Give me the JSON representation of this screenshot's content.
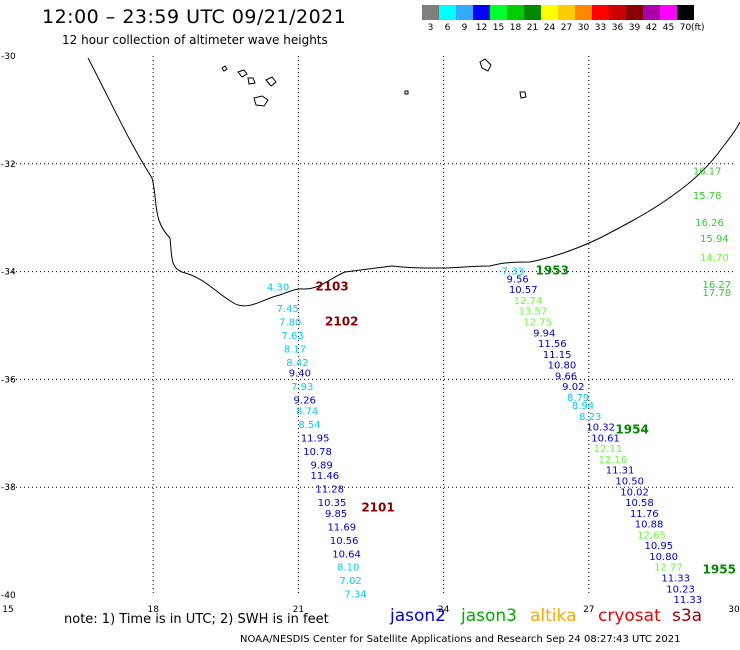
{
  "header": {
    "title": "12:00 – 23:59 UTC 09/21/2021",
    "subtitle": "12 hour collection of altimeter wave heights"
  },
  "scale": {
    "unit": "(ft)",
    "bins": [
      {
        "label": "3",
        "color": "#7f7f7f"
      },
      {
        "label": "6",
        "color": "#00ffff"
      },
      {
        "label": "9",
        "color": "#33aaff"
      },
      {
        "label": "12",
        "color": "#0000ff"
      },
      {
        "label": "15",
        "color": "#00ff33"
      },
      {
        "label": "18",
        "color": "#00cc00"
      },
      {
        "label": "21",
        "color": "#008800"
      },
      {
        "label": "24",
        "color": "#ffff00"
      },
      {
        "label": "27",
        "color": "#ffcc00"
      },
      {
        "label": "30",
        "color": "#ff8800"
      },
      {
        "label": "33",
        "color": "#ff0000"
      },
      {
        "label": "36",
        "color": "#cc0000"
      },
      {
        "label": "39",
        "color": "#880000"
      },
      {
        "label": "42",
        "color": "#aa00aa"
      },
      {
        "label": "45",
        "color": "#ff00ff"
      },
      {
        "label": "70",
        "color": "#000000"
      }
    ]
  },
  "map": {
    "lat_labels": [
      "-30",
      "-32",
      "-34",
      "-36",
      "-38",
      "-40"
    ],
    "lon_labels": [
      "15",
      "18",
      "21",
      "24",
      "27",
      "30"
    ],
    "lat_range": [
      -40,
      -30
    ],
    "lon_range": [
      15,
      30
    ],
    "passes": [
      {
        "label": "2103",
        "satellite": "cryosat",
        "lat": -34.35,
        "lon": 21.35,
        "color": "#880000"
      },
      {
        "label": "2102",
        "satellite": "cryosat",
        "lat": -35.0,
        "lon": 21.55,
        "color": "#880000"
      },
      {
        "label": "2101",
        "satellite": "cryosat",
        "lat": -38.45,
        "lon": 22.3,
        "color": "#880000"
      },
      {
        "label": "1953",
        "satellite": "jason3",
        "lat": -34.05,
        "lon": 25.9,
        "color": "#008800"
      },
      {
        "label": "1954",
        "satellite": "jason3",
        "lat": -37.0,
        "lon": 27.55,
        "color": "#008800"
      },
      {
        "label": "1955",
        "satellite": "jason3",
        "lat": -39.6,
        "lon": 29.35,
        "color": "#008800"
      }
    ],
    "readings": [
      {
        "v": "4.30",
        "lat": -34.35,
        "lon": 20.35,
        "color": "#00ccff"
      },
      {
        "v": "7.45",
        "lat": -34.75,
        "lon": 20.55,
        "color": "#00ccff"
      },
      {
        "v": "7.80",
        "lat": -35.0,
        "lon": 20.6,
        "color": "#00ccff"
      },
      {
        "v": "7.63",
        "lat": -35.25,
        "lon": 20.65,
        "color": "#00ccff"
      },
      {
        "v": "8.17",
        "lat": -35.5,
        "lon": 20.7,
        "color": "#00ccff"
      },
      {
        "v": "8.42",
        "lat": -35.75,
        "lon": 20.75,
        "color": "#00ccff"
      },
      {
        "v": "9.40",
        "lat": -35.95,
        "lon": 20.8,
        "color": "#0000cc"
      },
      {
        "v": "7.93",
        "lat": -36.2,
        "lon": 20.85,
        "color": "#00ccff"
      },
      {
        "v": "9.26",
        "lat": -36.45,
        "lon": 20.9,
        "color": "#0000cc"
      },
      {
        "v": "8.74",
        "lat": -36.65,
        "lon": 20.95,
        "color": "#00ccff"
      },
      {
        "v": "8.54",
        "lat": -36.9,
        "lon": 21.0,
        "color": "#00ccff"
      },
      {
        "v": "11.95",
        "lat": -37.15,
        "lon": 21.05,
        "color": "#0000cc"
      },
      {
        "v": "10.78",
        "lat": -37.4,
        "lon": 21.1,
        "color": "#0000cc"
      },
      {
        "v": "9.89",
        "lat": -37.65,
        "lon": 21.25,
        "color": "#0000cc"
      },
      {
        "v": "11.46",
        "lat": -37.85,
        "lon": 21.25,
        "color": "#0000cc"
      },
      {
        "v": "11.28",
        "lat": -38.1,
        "lon": 21.35,
        "color": "#0000cc"
      },
      {
        "v": "10.35",
        "lat": -38.35,
        "lon": 21.4,
        "color": "#0000cc"
      },
      {
        "v": "9.85",
        "lat": -38.55,
        "lon": 21.55,
        "color": "#0000cc"
      },
      {
        "v": "11.69",
        "lat": -38.8,
        "lon": 21.6,
        "color": "#0000cc"
      },
      {
        "v": "10.56",
        "lat": -39.05,
        "lon": 21.65,
        "color": "#0000cc"
      },
      {
        "v": "10.64",
        "lat": -39.3,
        "lon": 21.7,
        "color": "#0000cc"
      },
      {
        "v": "8.10",
        "lat": -39.55,
        "lon": 21.8,
        "color": "#00ccff"
      },
      {
        "v": "7.02",
        "lat": -39.8,
        "lon": 21.85,
        "color": "#00ccff"
      },
      {
        "v": "7.34",
        "lat": -40.05,
        "lon": 21.95,
        "color": "#00ccff"
      },
      {
        "v": "7.33",
        "lat": -34.05,
        "lon": 25.2,
        "color": "#00ccff"
      },
      {
        "v": "9.56",
        "lat": -34.2,
        "lon": 25.3,
        "color": "#0000cc"
      },
      {
        "v": "10.57",
        "lat": -34.4,
        "lon": 25.35,
        "color": "#0000cc"
      },
      {
        "v": "12.74",
        "lat": -34.6,
        "lon": 25.45,
        "color": "#66ff33"
      },
      {
        "v": "13.57",
        "lat": -34.8,
        "lon": 25.55,
        "color": "#66ff33"
      },
      {
        "v": "12.75",
        "lat": -35.0,
        "lon": 25.65,
        "color": "#66ff33"
      },
      {
        "v": "9.94",
        "lat": -35.2,
        "lon": 25.85,
        "color": "#0000cc"
      },
      {
        "v": "11.56",
        "lat": -35.4,
        "lon": 25.95,
        "color": "#0000cc"
      },
      {
        "v": "11.15",
        "lat": -35.6,
        "lon": 26.05,
        "color": "#0000cc"
      },
      {
        "v": "10.80",
        "lat": -35.8,
        "lon": 26.15,
        "color": "#0000cc"
      },
      {
        "v": "9.66",
        "lat": -36.0,
        "lon": 26.3,
        "color": "#0000cc"
      },
      {
        "v": "9.02",
        "lat": -36.2,
        "lon": 26.45,
        "color": "#0000cc"
      },
      {
        "v": "8.79",
        "lat": -36.4,
        "lon": 26.55,
        "color": "#00ccff"
      },
      {
        "v": "8.94",
        "lat": -36.55,
        "lon": 26.65,
        "color": "#00ccff"
      },
      {
        "v": "8.23",
        "lat": -36.75,
        "lon": 26.8,
        "color": "#00ccff"
      },
      {
        "v": "10.32",
        "lat": -36.95,
        "lon": 26.95,
        "color": "#0000cc"
      },
      {
        "v": "10.61",
        "lat": -37.15,
        "lon": 27.05,
        "color": "#0000cc"
      },
      {
        "v": "12.11",
        "lat": -37.35,
        "lon": 27.1,
        "color": "#66ff33"
      },
      {
        "v": "12.16",
        "lat": -37.55,
        "lon": 27.2,
        "color": "#66ff33"
      },
      {
        "v": "11.31",
        "lat": -37.75,
        "lon": 27.35,
        "color": "#0000cc"
      },
      {
        "v": "10.50",
        "lat": -37.95,
        "lon": 27.55,
        "color": "#0000cc"
      },
      {
        "v": "10.02",
        "lat": -38.15,
        "lon": 27.65,
        "color": "#0000cc"
      },
      {
        "v": "10.58",
        "lat": -38.35,
        "lon": 27.75,
        "color": "#0000cc"
      },
      {
        "v": "11.76",
        "lat": -38.55,
        "lon": 27.85,
        "color": "#0000cc"
      },
      {
        "v": "10.88",
        "lat": -38.75,
        "lon": 27.95,
        "color": "#0000cc"
      },
      {
        "v": "12.65",
        "lat": -38.95,
        "lon": 28.0,
        "color": "#66ff33"
      },
      {
        "v": "10.95",
        "lat": -39.15,
        "lon": 28.15,
        "color": "#0000cc"
      },
      {
        "v": "10.80",
        "lat": -39.35,
        "lon": 28.25,
        "color": "#0000cc"
      },
      {
        "v": "12.77",
        "lat": -39.55,
        "lon": 28.35,
        "color": "#66ff33"
      },
      {
        "v": "11.33",
        "lat": -39.75,
        "lon": 28.5,
        "color": "#0000cc"
      },
      {
        "v": "10.23",
        "lat": -39.95,
        "lon": 28.6,
        "color": "#0000cc"
      },
      {
        "v": "11.33",
        "lat": -40.15,
        "lon": 28.75,
        "color": "#0000cc"
      },
      {
        "v": "16.17",
        "lat": -32.2,
        "lon": 29.15,
        "color": "#33cc33"
      },
      {
        "v": "15.78",
        "lat": -32.65,
        "lon": 29.15,
        "color": "#33cc33"
      },
      {
        "v": "16.26",
        "lat": -33.15,
        "lon": 29.2,
        "color": "#33cc33"
      },
      {
        "v": "15.94",
        "lat": -33.45,
        "lon": 29.3,
        "color": "#33cc33"
      },
      {
        "v": "14.70",
        "lat": -33.8,
        "lon": 29.3,
        "color": "#66ff33"
      },
      {
        "v": "16.27",
        "lat": -34.3,
        "lon": 29.35,
        "color": "#33cc33"
      },
      {
        "v": "17.78",
        "lat": -34.45,
        "lon": 29.35,
        "color": "#33cc33"
      }
    ]
  },
  "footer": {
    "note": "note: 1) Time is in UTC; 2) SWH is in feet",
    "satellites": [
      {
        "name": "jason2",
        "color": "#0000dd"
      },
      {
        "name": "jason3",
        "color": "#00aa00"
      },
      {
        "name": "altika",
        "color": "#ffaa00"
      },
      {
        "name": "cryosat",
        "color": "#ee0000"
      },
      {
        "name": "s3a",
        "color": "#990000"
      }
    ],
    "credit": "NOAA/NESDIS Center for Satellite Applications and Research    Sep 24 08:27:43 UTC 2021"
  }
}
